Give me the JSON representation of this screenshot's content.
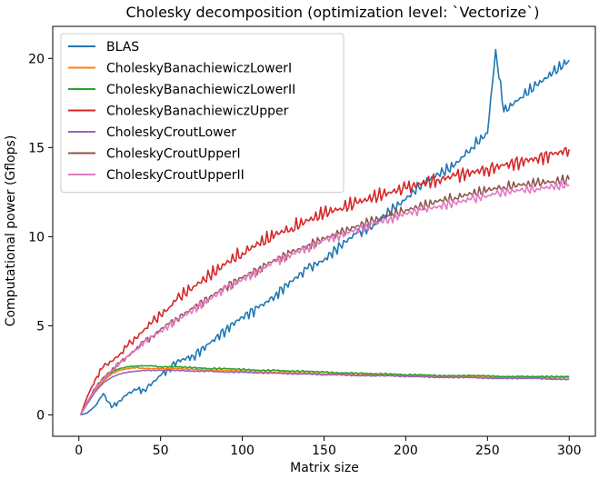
{
  "chart_data": {
    "type": "line",
    "title": "Cholesky decomposition (optimization level: `Vectorize`)",
    "xlabel": "Matrix size",
    "ylabel": "Computational power (Gflops)",
    "xlim": [
      -16,
      316
    ],
    "ylim": [
      -1.2,
      21.8
    ],
    "xticks": [
      0,
      50,
      100,
      150,
      200,
      250,
      300
    ],
    "yticks": [
      0,
      5,
      10,
      15,
      20
    ],
    "grid": false,
    "legend_position": "upper-left",
    "x": [
      1,
      5,
      10,
      15,
      20,
      25,
      30,
      35,
      40,
      45,
      50,
      55,
      60,
      70,
      80,
      90,
      100,
      110,
      120,
      130,
      140,
      150,
      160,
      170,
      180,
      190,
      200,
      210,
      220,
      230,
      240,
      250,
      255,
      260,
      270,
      280,
      290,
      300
    ],
    "series": [
      {
        "name": "BLAS",
        "color": "#1f77b4",
        "values": [
          0.0,
          0.1,
          0.5,
          1.2,
          0.4,
          0.8,
          1.2,
          1.4,
          1.4,
          1.8,
          2.2,
          2.6,
          3.0,
          3.3,
          4.0,
          4.8,
          5.5,
          6.0,
          6.7,
          7.5,
          8.2,
          8.7,
          9.5,
          10.2,
          10.6,
          11.4,
          12.1,
          13.0,
          13.5,
          14.0,
          15.0,
          15.8,
          20.5,
          17.0,
          17.8,
          18.5,
          19.2,
          19.9
        ],
        "jitter": 0.35
      },
      {
        "name": "CholeskyBanachiewiczLowerI",
        "color": "#ff7f0e",
        "values": [
          0.0,
          0.7,
          1.4,
          1.9,
          2.3,
          2.5,
          2.6,
          2.65,
          2.6,
          2.6,
          2.6,
          2.6,
          2.6,
          2.55,
          2.5,
          2.5,
          2.45,
          2.4,
          2.4,
          2.35,
          2.35,
          2.3,
          2.3,
          2.25,
          2.25,
          2.2,
          2.2,
          2.2,
          2.15,
          2.15,
          2.15,
          2.1,
          2.1,
          2.1,
          2.1,
          2.1,
          2.1,
          2.1
        ],
        "jitter": 0.05
      },
      {
        "name": "CholeskyBanachiewiczLowerII",
        "color": "#2ca02c",
        "values": [
          0.0,
          0.7,
          1.5,
          2.0,
          2.4,
          2.6,
          2.7,
          2.75,
          2.75,
          2.75,
          2.7,
          2.7,
          2.7,
          2.65,
          2.6,
          2.6,
          2.55,
          2.5,
          2.5,
          2.45,
          2.45,
          2.4,
          2.35,
          2.35,
          2.3,
          2.3,
          2.25,
          2.25,
          2.2,
          2.2,
          2.2,
          2.2,
          2.15,
          2.15,
          2.15,
          2.15,
          2.15,
          2.15
        ],
        "jitter": 0.05
      },
      {
        "name": "CholeskyBanachiewiczUpper",
        "color": "#d62728",
        "values": [
          0.0,
          1.0,
          2.0,
          2.7,
          3.0,
          3.4,
          3.9,
          4.3,
          4.8,
          5.2,
          5.6,
          6.0,
          6.5,
          7.2,
          7.8,
          8.5,
          9.1,
          9.6,
          10.1,
          10.5,
          10.9,
          11.3,
          11.6,
          11.9,
          12.2,
          12.5,
          12.7,
          13.0,
          13.2,
          13.4,
          13.6,
          13.8,
          13.9,
          14.0,
          14.2,
          14.4,
          14.6,
          14.9
        ],
        "jitter": 0.45
      },
      {
        "name": "CholeskyCroutLower",
        "color": "#9467bd",
        "values": [
          0.0,
          0.6,
          1.3,
          1.8,
          2.1,
          2.3,
          2.4,
          2.45,
          2.5,
          2.5,
          2.5,
          2.5,
          2.5,
          2.45,
          2.45,
          2.4,
          2.4,
          2.35,
          2.35,
          2.3,
          2.3,
          2.25,
          2.25,
          2.2,
          2.2,
          2.2,
          2.15,
          2.15,
          2.1,
          2.1,
          2.1,
          2.05,
          2.05,
          2.05,
          2.05,
          2.05,
          2.0,
          2.0
        ],
        "jitter": 0.04
      },
      {
        "name": "CholeskyCroutUpperI",
        "color": "#8c564b",
        "values": [
          0.0,
          0.7,
          1.5,
          2.1,
          2.5,
          2.9,
          3.3,
          3.7,
          4.1,
          4.4,
          4.8,
          5.1,
          5.4,
          6.0,
          6.6,
          7.2,
          7.7,
          8.2,
          8.7,
          9.1,
          9.5,
          9.9,
          10.2,
          10.6,
          10.9,
          11.2,
          11.5,
          11.7,
          12.0,
          12.2,
          12.4,
          12.6,
          12.7,
          12.8,
          12.9,
          13.0,
          13.1,
          13.2
        ],
        "jitter": 0.3
      },
      {
        "name": "CholeskyCroutUpperII",
        "color": "#e377c2",
        "values": [
          0.0,
          0.7,
          1.5,
          2.0,
          2.5,
          2.9,
          3.3,
          3.7,
          4.1,
          4.4,
          4.7,
          5.0,
          5.3,
          5.9,
          6.5,
          7.1,
          7.6,
          8.1,
          8.6,
          9.0,
          9.4,
          9.8,
          10.1,
          10.4,
          10.7,
          11.0,
          11.3,
          11.5,
          11.7,
          11.9,
          12.1,
          12.3,
          12.4,
          12.5,
          12.6,
          12.7,
          12.8,
          12.9
        ],
        "jitter": 0.3
      }
    ]
  }
}
